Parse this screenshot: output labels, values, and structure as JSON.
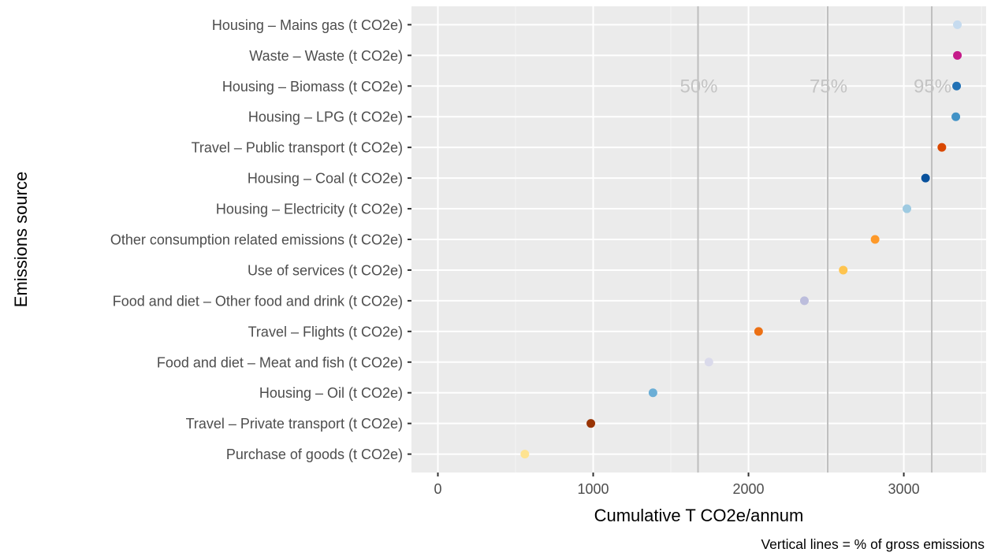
{
  "chart_data": {
    "type": "scatter",
    "xlabel": "Cumulative T CO2e/annum",
    "ylabel": "Emissions source",
    "caption": "Vertical lines = % of gross emissions",
    "xlim": [
      -170,
      3530
    ],
    "x_ticks": [
      0,
      1000,
      2000,
      3000
    ],
    "x_tick_labels": [
      "0",
      "1000",
      "2000",
      "3000"
    ],
    "grid": true,
    "background": "#ebebeb",
    "points": [
      {
        "label": "Purchase of goods (t CO2e)",
        "x": 560,
        "color": "#fee391"
      },
      {
        "label": "Travel – Private transport (t CO2e)",
        "x": 985,
        "color": "#993404"
      },
      {
        "label": "Housing – Oil (t CO2e)",
        "x": 1385,
        "color": "#6baed6"
      },
      {
        "label": "Food and diet – Meat and fish (t CO2e)",
        "x": 1745,
        "color": "#dadaeb"
      },
      {
        "label": "Travel – Flights (t CO2e)",
        "x": 2065,
        "color": "#ec7014"
      },
      {
        "label": "Food and diet – Other food and drink (t CO2e)",
        "x": 2360,
        "color": "#bcbddc"
      },
      {
        "label": "Use of services (t CO2e)",
        "x": 2610,
        "color": "#fec44f"
      },
      {
        "label": "Other consumption related emissions (t CO2e)",
        "x": 2815,
        "color": "#fe9929"
      },
      {
        "label": "Housing – Electricity (t CO2e)",
        "x": 3020,
        "color": "#9ecae1"
      },
      {
        "label": "Housing – Coal (t CO2e)",
        "x": 3140,
        "color": "#08519c"
      },
      {
        "label": "Travel – Public transport (t CO2e)",
        "x": 3245,
        "color": "#d94801"
      },
      {
        "label": "Housing – LPG (t CO2e)",
        "x": 3335,
        "color": "#4292c6"
      },
      {
        "label": "Housing – Biomass (t CO2e)",
        "x": 3340,
        "color": "#2171b5"
      },
      {
        "label": "Waste – Waste (t CO2e)",
        "x": 3345,
        "color": "#c51b8a"
      },
      {
        "label": "Housing – Mains gas (t CO2e)",
        "x": 3345,
        "color": "#c6dbef"
      }
    ],
    "reference_lines": [
      {
        "label": "50%",
        "x": 1675
      },
      {
        "label": "75%",
        "x": 2510
      },
      {
        "label": "95%",
        "x": 3180
      }
    ]
  }
}
